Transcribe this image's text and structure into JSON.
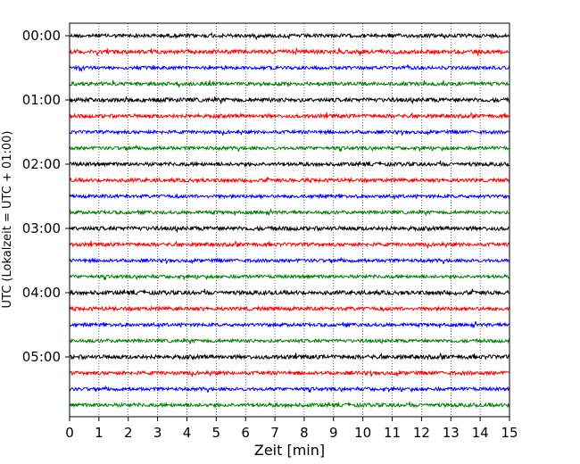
{
  "chart_data": {
    "type": "line",
    "title": "",
    "xlabel": "Zeit  [min]",
    "ylabel": "UTC (Lokalzeit = UTC + 01:00)",
    "xlim": [
      0,
      15
    ],
    "x_ticks": [
      "0",
      "1",
      "2",
      "3",
      "4",
      "5",
      "6",
      "7",
      "8",
      "9",
      "10",
      "11",
      "12",
      "13",
      "14",
      "15"
    ],
    "y_ticks": [
      {
        "label": "00:00",
        "trace": 0
      },
      {
        "label": "01:00",
        "trace": 4
      },
      {
        "label": "02:00",
        "trace": 8
      },
      {
        "label": "03:00",
        "trace": 12
      },
      {
        "label": "04:00",
        "trace": 16
      },
      {
        "label": "05:00",
        "trace": 20
      }
    ],
    "trace_interval_min": 15,
    "trace_count": 24,
    "trace_colors": [
      "#000000",
      "#ff0000",
      "#0000ff",
      "#008000"
    ],
    "grid": {
      "vertical": true,
      "style": "dotted"
    },
    "series": [
      {
        "start": "00:00",
        "amplitude": 0.2
      },
      {
        "start": "00:15",
        "amplitude": 0.22
      },
      {
        "start": "00:30",
        "amplitude": 0.18
      },
      {
        "start": "00:45",
        "amplitude": 0.2
      },
      {
        "start": "01:00",
        "amplitude": 0.22
      },
      {
        "start": "01:15",
        "amplitude": 0.2
      },
      {
        "start": "01:30",
        "amplitude": 0.18
      },
      {
        "start": "01:45",
        "amplitude": 0.18
      },
      {
        "start": "02:00",
        "amplitude": 0.2
      },
      {
        "start": "02:15",
        "amplitude": 0.2
      },
      {
        "start": "02:30",
        "amplitude": 0.18
      },
      {
        "start": "02:45",
        "amplitude": 0.18
      },
      {
        "start": "03:00",
        "amplitude": 0.22
      },
      {
        "start": "03:15",
        "amplitude": 0.2
      },
      {
        "start": "03:30",
        "amplitude": 0.18
      },
      {
        "start": "03:45",
        "amplitude": 0.18
      },
      {
        "start": "04:00",
        "amplitude": 0.22
      },
      {
        "start": "04:15",
        "amplitude": 0.2
      },
      {
        "start": "04:30",
        "amplitude": 0.18
      },
      {
        "start": "04:45",
        "amplitude": 0.18
      },
      {
        "start": "05:00",
        "amplitude": 0.22
      },
      {
        "start": "05:15",
        "amplitude": 0.2
      },
      {
        "start": "05:30",
        "amplitude": 0.18
      },
      {
        "start": "05:45",
        "amplitude": 0.2
      }
    ]
  }
}
